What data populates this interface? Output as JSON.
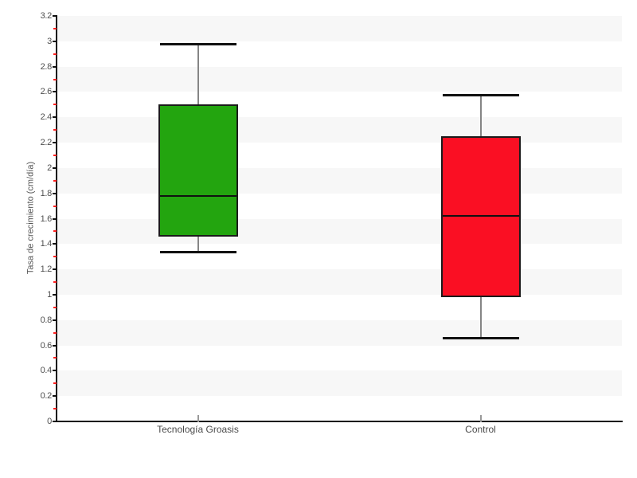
{
  "chart_data": {
    "type": "boxplot",
    "title": "",
    "xlabel": "",
    "ylabel": "Tasa de crecimiento (cm/día)",
    "categories": [
      "Tecnología Groasis",
      "Control"
    ],
    "series": [
      {
        "name": "Tecnología Groasis",
        "box_color": "#23a50f",
        "whisker_low": 1.34,
        "q1": 1.46,
        "median": 1.78,
        "q3": 2.5,
        "whisker_high": 2.98
      },
      {
        "name": "Control",
        "box_color": "#fa0f23",
        "whisker_low": 0.66,
        "q1": 0.98,
        "median": 1.62,
        "q3": 2.25,
        "whisker_high": 2.58
      }
    ],
    "ylim": [
      0,
      3.2
    ],
    "ytick_step": 0.2,
    "ytick_labels": [
      "0",
      "0.2",
      "0.4",
      "0.6",
      "0.8",
      "1",
      "1.2",
      "1.4",
      "1.6",
      "1.8",
      "2",
      "2.2",
      "2.4",
      "2.6",
      "2.8",
      "3",
      "3.2"
    ],
    "yminor_tick_step": 0.1,
    "grid": {
      "horizontal_dashed": true,
      "alternating_bands": true,
      "vertical_category_lines": true
    },
    "legend": "none"
  },
  "style": {
    "background": "#ffffff",
    "band_color": "#f7f7f7",
    "hgrid_color": "#e3e3e3",
    "vgrid_color": "#ededed",
    "axis_color": "#111111",
    "tick_label_color": "#4d4d4d",
    "category_label_color": "#4a4a4a",
    "minor_tick_color": "#ff2020",
    "whisker_color": "#858585",
    "cap_color": "#111111",
    "box_border_color": "#1b1b1b",
    "median_color": "#111111",
    "y_title_color": "#555555"
  }
}
